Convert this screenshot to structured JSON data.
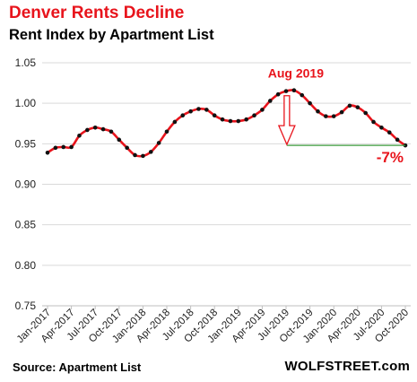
{
  "title": "Denver Rents Decline",
  "subtitle": "Rent Index by Apartment List",
  "source": "Source: Apartment List",
  "brand": "WOLFSTREET.com",
  "colors": {
    "title": "#e8141c",
    "line": "#e8141c",
    "marker": "#111111",
    "flat_line": "#3a9a3a",
    "arrow": "#e8141c",
    "grid": "#d9d9d9"
  },
  "chart_data": {
    "type": "line",
    "title": "Rent Index by Apartment List",
    "xlabel": "",
    "ylabel": "",
    "ylim": [
      0.75,
      1.05
    ],
    "yticks": [
      "0.75",
      "0.80",
      "0.85",
      "0.90",
      "0.95",
      "1.00",
      "1.05"
    ],
    "grid": "horizontal",
    "x_tick_labels": [
      "Jan-2017",
      "Apr-2017",
      "Jul-2017",
      "Oct-2017",
      "Jan-2018",
      "Apr-2018",
      "Jul-2018",
      "Oct-2018",
      "Jan-2019",
      "Apr-2019",
      "Jul-2019",
      "Oct-2019",
      "Jan-2020",
      "Apr-2020",
      "Jul-2020",
      "Oct-2020"
    ],
    "x": [
      "Jan-2017",
      "Feb-2017",
      "Mar-2017",
      "Apr-2017",
      "May-2017",
      "Jun-2017",
      "Jul-2017",
      "Aug-2017",
      "Sep-2017",
      "Oct-2017",
      "Nov-2017",
      "Dec-2017",
      "Jan-2018",
      "Feb-2018",
      "Mar-2018",
      "Apr-2018",
      "May-2018",
      "Jun-2018",
      "Jul-2018",
      "Aug-2018",
      "Sep-2018",
      "Oct-2018",
      "Nov-2018",
      "Dec-2018",
      "Jan-2019",
      "Feb-2019",
      "Mar-2019",
      "Apr-2019",
      "May-2019",
      "Jun-2019",
      "Jul-2019",
      "Aug-2019",
      "Sep-2019",
      "Oct-2019",
      "Nov-2019",
      "Dec-2019",
      "Jan-2020",
      "Feb-2020",
      "Mar-2020",
      "Apr-2020",
      "May-2020",
      "Jun-2020",
      "Jul-2020",
      "Aug-2020",
      "Sep-2020",
      "Oct-2020"
    ],
    "series": [
      {
        "values": [
          0.939,
          0.945,
          0.946,
          0.946,
          0.96,
          0.967,
          0.97,
          0.968,
          0.965,
          0.955,
          0.945,
          0.936,
          0.935,
          0.94,
          0.951,
          0.965,
          0.977,
          0.985,
          0.99,
          0.993,
          0.992,
          0.985,
          0.98,
          0.978,
          0.978,
          0.98,
          0.985,
          0.992,
          1.003,
          1.011,
          1.015,
          1.016,
          1.01,
          1.0,
          0.99,
          0.984,
          0.984,
          0.989,
          0.997,
          0.995,
          0.988,
          0.977,
          0.97,
          0.964,
          0.955,
          0.948
        ]
      }
    ],
    "annotations": [
      {
        "text": "Aug 2019",
        "x": "Aug-2019",
        "y": 1.016
      },
      {
        "text": "-7%",
        "x": "Oct-2020",
        "y": 0.948
      }
    ]
  }
}
